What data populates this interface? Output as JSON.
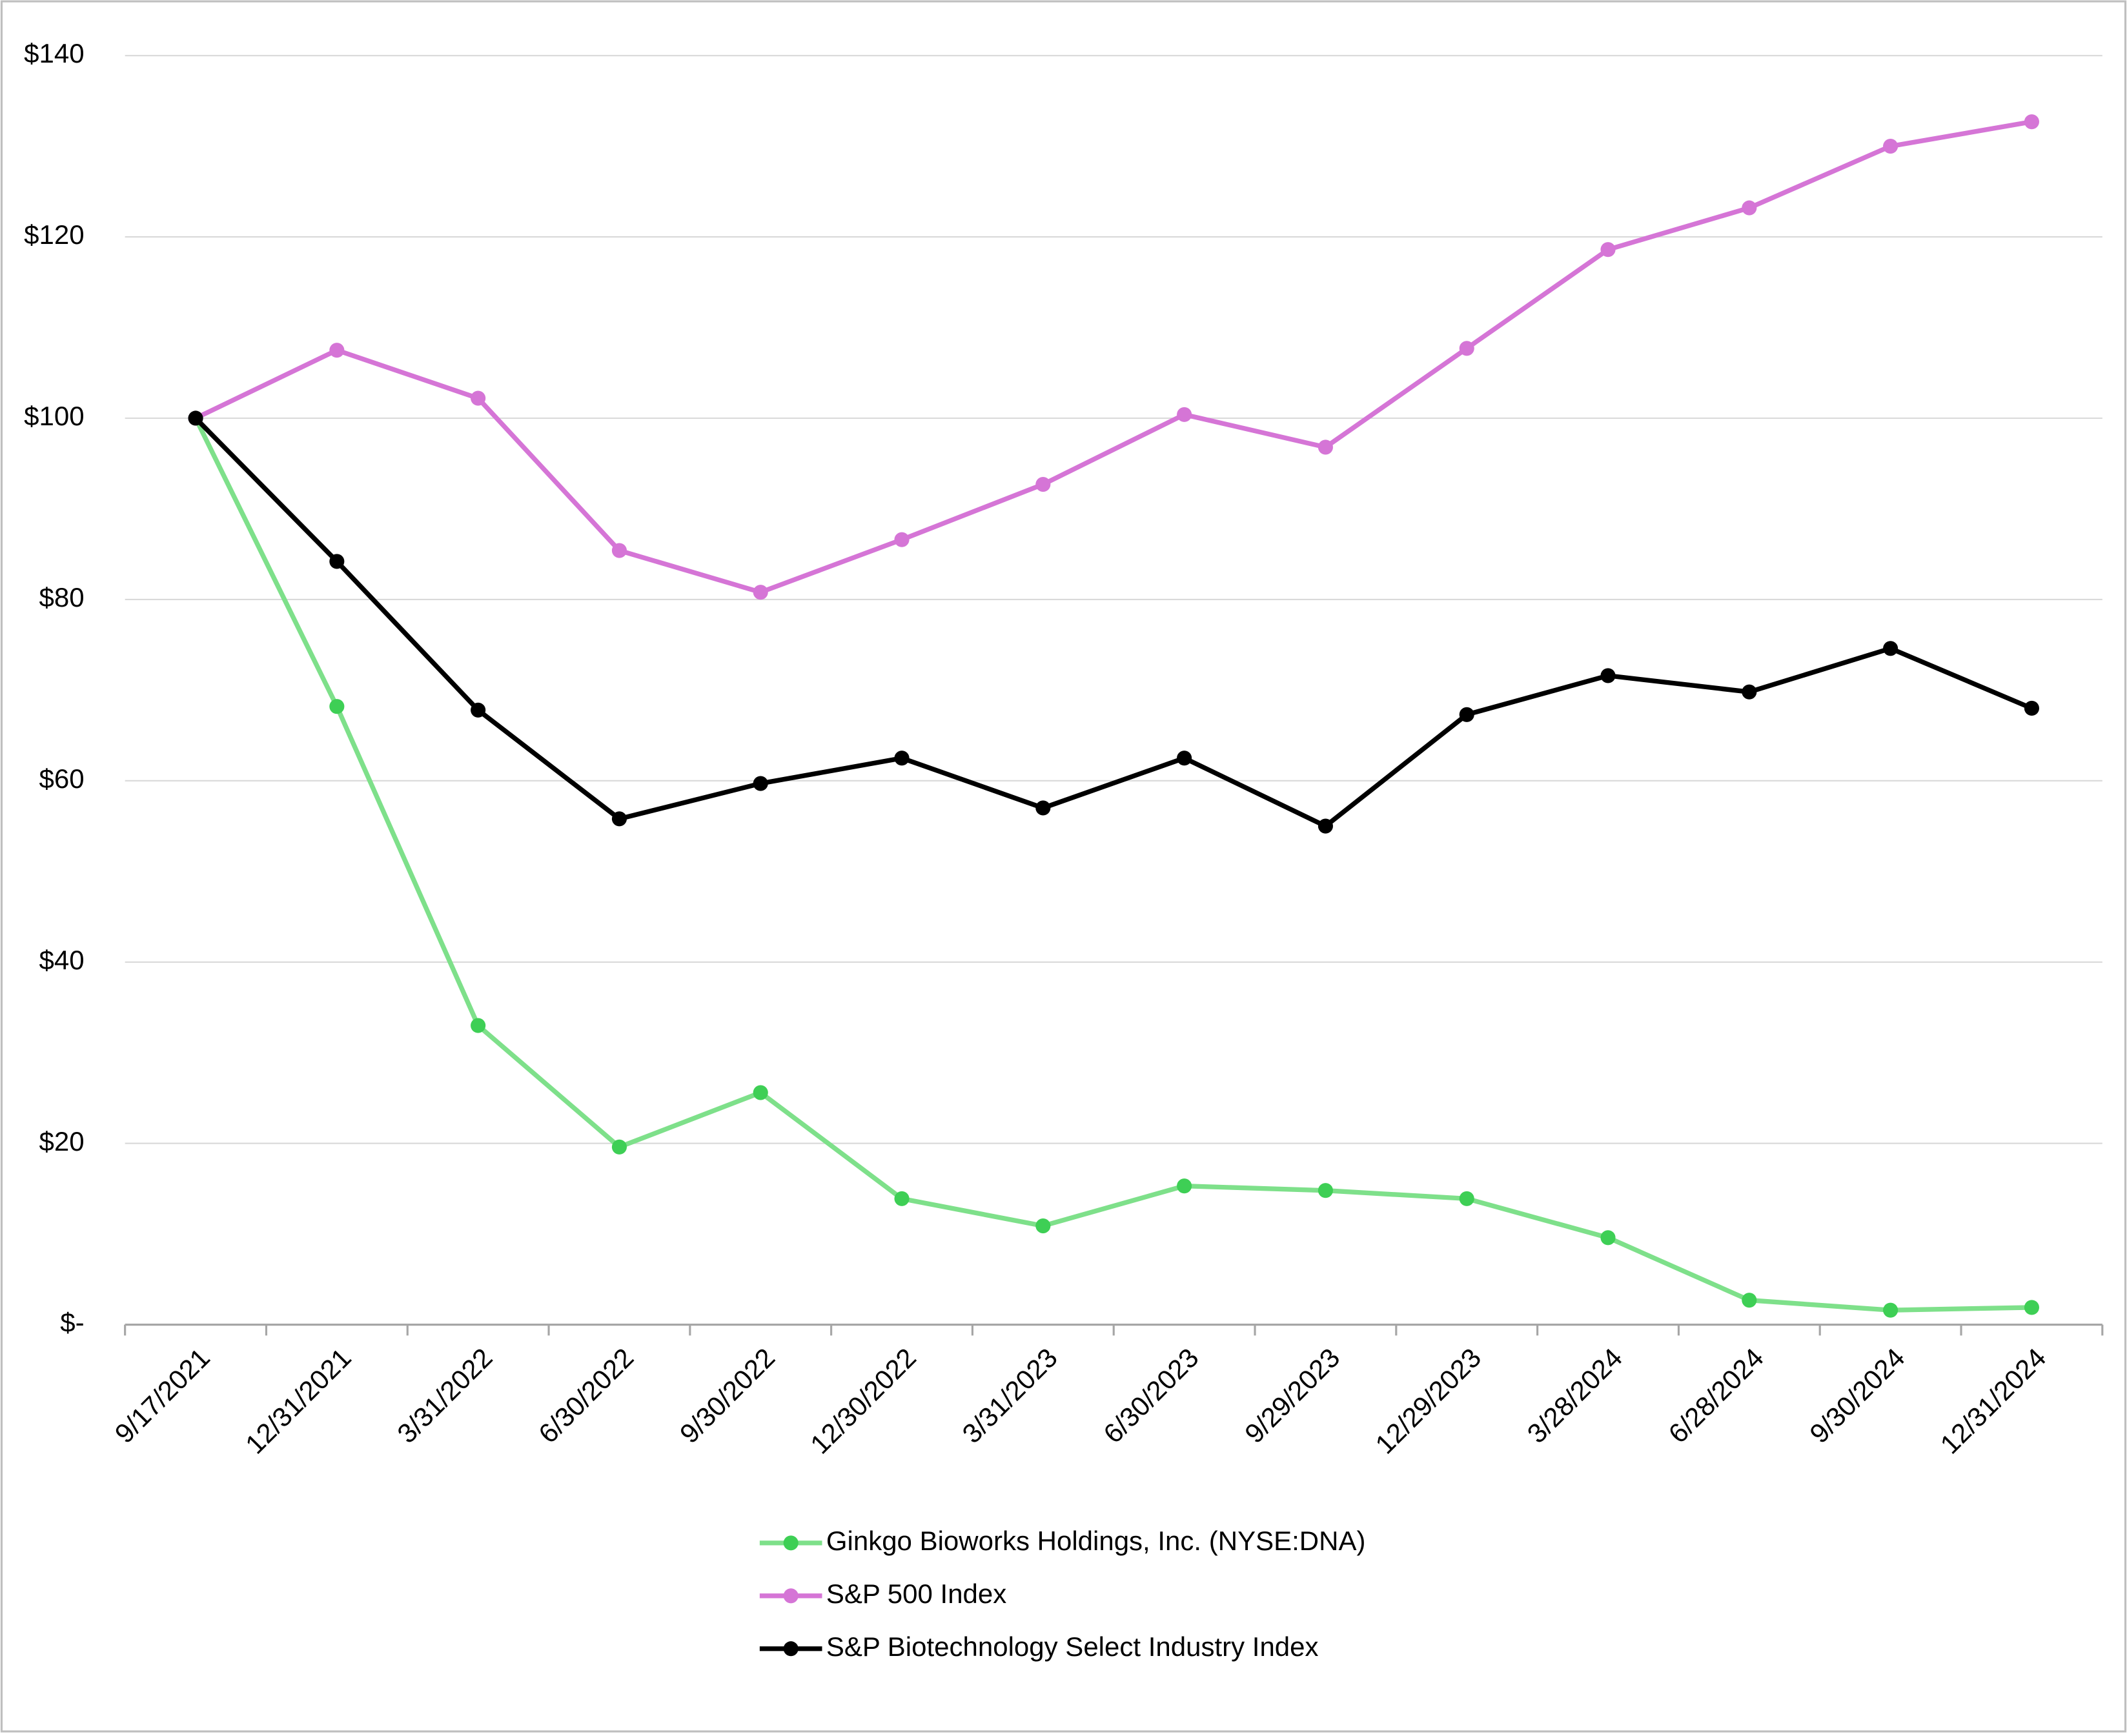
{
  "chart_data": {
    "type": "line",
    "categories": [
      "9/17/2021",
      "12/31/2021",
      "3/31/2022",
      "6/30/2022",
      "9/30/2022",
      "12/30/2022",
      "3/31/2023",
      "6/30/2023",
      "9/29/2023",
      "12/29/2023",
      "3/28/2024",
      "6/28/2024",
      "9/30/2024",
      "12/31/2024"
    ],
    "series": [
      {
        "name": "Ginkgo Bioworks Holdings, Inc. (NYSE:DNA)",
        "color": "#7ee08a",
        "marker_color": "#3ecf55",
        "values": [
          100,
          68.2,
          33.0,
          19.6,
          25.6,
          13.9,
          10.9,
          15.3,
          14.8,
          13.9,
          9.6,
          2.7,
          1.6,
          1.9
        ]
      },
      {
        "name": "S&P 500 Index",
        "color": "#d575d6",
        "marker_color": "#d575d6",
        "values": [
          100,
          107.5,
          102.2,
          85.4,
          80.8,
          86.6,
          92.7,
          100.4,
          96.8,
          107.7,
          118.6,
          123.2,
          130.0,
          132.7
        ]
      },
      {
        "name": "S&P Biotechnology Select Industry Index",
        "color": "#000000",
        "marker_color": "#000000",
        "values": [
          100,
          84.2,
          67.8,
          55.8,
          59.7,
          62.5,
          57.0,
          62.5,
          55.0,
          67.3,
          71.6,
          69.8,
          74.6,
          68.0
        ]
      }
    ],
    "ylim": [
      0,
      140
    ],
    "yticks": [
      {
        "value": 0,
        "label": "$-"
      },
      {
        "value": 20,
        "label": "$20"
      },
      {
        "value": 40,
        "label": "$40"
      },
      {
        "value": 60,
        "label": "$60"
      },
      {
        "value": 80,
        "label": "$80"
      },
      {
        "value": 100,
        "label": "$100"
      },
      {
        "value": 120,
        "label": "$120"
      },
      {
        "value": 140,
        "label": "$140"
      }
    ],
    "grid": true,
    "legend": "bottom"
  }
}
